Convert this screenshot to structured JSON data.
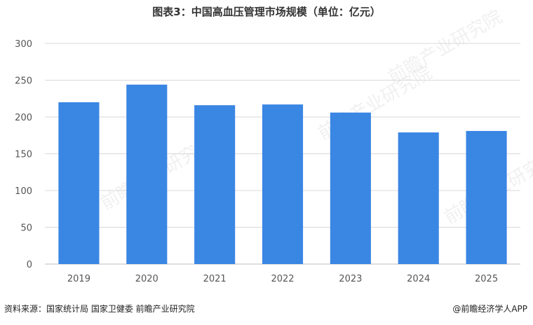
{
  "chart_data": {
    "type": "bar",
    "title": "图表3：中国高血压管理市场规模（单位：亿元）",
    "categories": [
      "2019",
      "2020",
      "2021",
      "2022",
      "2023",
      "2024",
      "2025"
    ],
    "values": [
      220,
      244,
      216,
      217,
      206,
      179,
      181
    ],
    "ylim": [
      0,
      300
    ],
    "yticks": [
      0,
      50,
      100,
      150,
      200,
      250,
      300
    ],
    "grid": true,
    "bar_color": "#3a86e3",
    "grid_color": "#d9d9d9"
  },
  "footer": {
    "source": "资料来源：国家统计局 国家卫健委  前瞻产业研究院",
    "brand": "@前瞻经济学人APP"
  },
  "watermark": {
    "text": "前瞻产业研究院"
  }
}
